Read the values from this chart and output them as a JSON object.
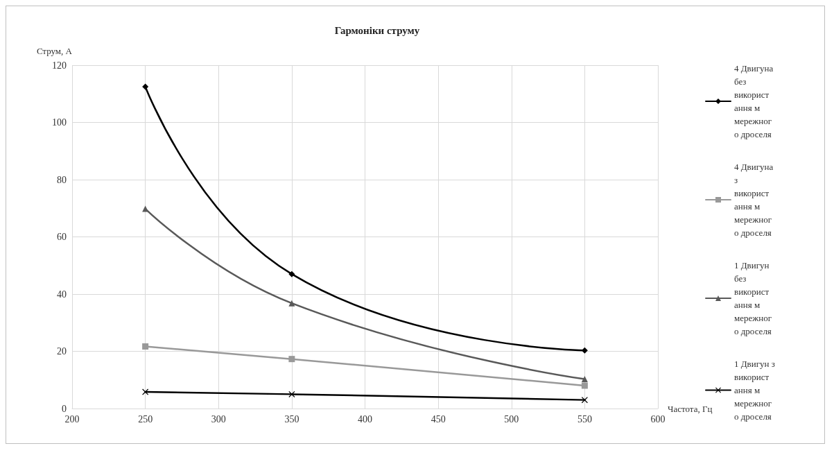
{
  "chart_data": {
    "type": "line",
    "title": "Гармоніки струму",
    "xlabel": "Частота, Гц",
    "ylabel": "Струм, А",
    "x": [
      250,
      350,
      550
    ],
    "series": [
      {
        "name": "4 Двигуна без використання м мережного дроселя",
        "color": "#000000",
        "marker": "diamond",
        "values": [
          112.5,
          47,
          20.3
        ]
      },
      {
        "name": "4 Двигуна з використання м мережного дроселя",
        "color": "#999999",
        "marker": "square",
        "values": [
          21.7,
          17.3,
          8
        ]
      },
      {
        "name": "1 Двигун без використання м мережного дроселя",
        "color": "#595959",
        "marker": "triangle",
        "values": [
          69.8,
          36.8,
          10.3
        ]
      },
      {
        "name": "1 Двигун з використання м мережного дроселя",
        "color": "#000000",
        "marker": "cross",
        "values": [
          5.8,
          5,
          3
        ]
      }
    ],
    "xlim": [
      200,
      600
    ],
    "xticks": [
      200,
      250,
      300,
      350,
      400,
      450,
      500,
      550,
      600
    ],
    "ylim": [
      0,
      120
    ],
    "yticks": [
      0,
      20,
      40,
      60,
      80,
      100,
      120
    ],
    "grid": true,
    "legend": "right",
    "line_style": "solid"
  }
}
